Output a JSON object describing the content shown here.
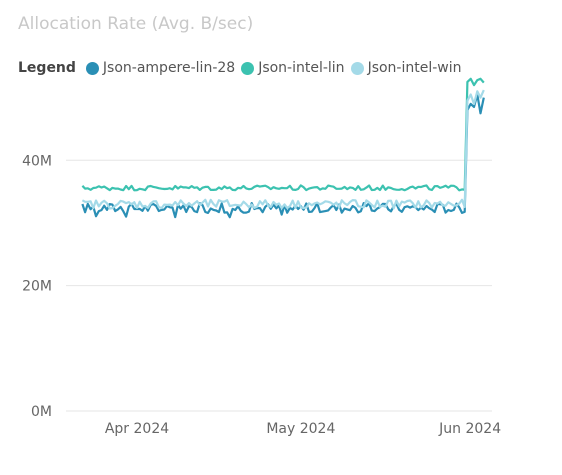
{
  "chart_data": {
    "type": "line",
    "title": "Allocation Rate (Avg. B/sec)",
    "legend_title": "Legend",
    "legend_position": "top-left",
    "x_range": [
      "2024-03-19",
      "2024-06-05"
    ],
    "x_ticks": [
      {
        "date": "2024-04-01",
        "label": "Apr 2024"
      },
      {
        "date": "2024-05-01",
        "label": "May 2024"
      },
      {
        "date": "2024-06-01",
        "label": "Jun 2024"
      }
    ],
    "ylim": [
      0,
      56000000
    ],
    "y_ticks": [
      {
        "value": 0,
        "label": "0M"
      },
      {
        "value": 20000000,
        "label": "20M"
      },
      {
        "value": 40000000,
        "label": "40M"
      }
    ],
    "grid": true,
    "series": [
      {
        "name": "Json-ampere-lin-28",
        "color": "#2a8fb5",
        "base": 32400000,
        "amp": 800000,
        "end_values": [
          48000000,
          49000000,
          48500000,
          50500000,
          47500000,
          50000000
        ]
      },
      {
        "name": "Json-intel-lin",
        "color": "#3cc2b0",
        "base": 35600000,
        "amp": 400000,
        "end_values": [
          52500000,
          53000000,
          52000000,
          52800000,
          53000000,
          52400000
        ]
      },
      {
        "name": "Json-intel-win",
        "color": "#a4dae8",
        "base": 33000000,
        "amp": 700000,
        "end_values": [
          49500000,
          50500000,
          49000000,
          51000000,
          50000000,
          51200000
        ]
      }
    ]
  }
}
